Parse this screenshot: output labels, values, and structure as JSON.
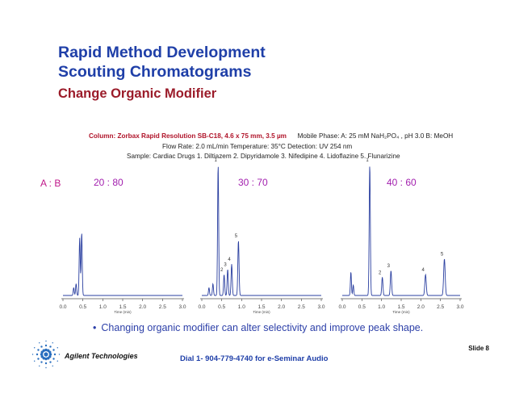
{
  "title_line1": "Rapid Method Development",
  "title_line2": "Scouting Chromatograms",
  "subtitle": "Change Organic Modifier",
  "conditions": {
    "column_label": "Column:  Zorbax Rapid Resolution SB-C18, 4.6 x 75 mm, 3.5 µm",
    "mobile_phase": "Mobile Phase: A: 25 mM NaH₂PO₄ , pH 3.0  B: MeOH",
    "flow_line": "Flow  Rate:  2.0 mL/min        Temperature: 35°C          Detection:  UV 254 nm",
    "sample_line": "Sample: Cardiac Drugs   1. Diltiazem   2. Dipyridamole   3. Nifedipine   4. Lidoflazine   5. Flunarizine"
  },
  "ab_label": "A : B",
  "x_ticks": [
    "0.0",
    "0.5",
    "1.0",
    "1.5",
    "2.0",
    "2.5",
    "3.0"
  ],
  "x_axis_label": "Time (min)",
  "panels": [
    {
      "ratio": "20 : 80",
      "peaks": [
        {
          "label": "",
          "t": 0.27,
          "h": 0.06
        },
        {
          "label": "",
          "t": 0.33,
          "h": 0.09
        },
        {
          "label": "",
          "t": 0.42,
          "h": 0.44
        },
        {
          "label": "",
          "t": 0.47,
          "h": 0.48
        }
      ]
    },
    {
      "ratio": "30 : 70",
      "peaks": [
        {
          "label": "",
          "t": 0.18,
          "h": 0.06
        },
        {
          "label": "",
          "t": 0.28,
          "h": 0.09
        },
        {
          "label": "1",
          "t": 0.41,
          "h": 1.0
        },
        {
          "label": "2",
          "t": 0.56,
          "h": 0.16
        },
        {
          "label": "3",
          "t": 0.65,
          "h": 0.2
        },
        {
          "label": "4",
          "t": 0.75,
          "h": 0.24
        },
        {
          "label": "5",
          "t": 0.92,
          "h": 0.42
        }
      ]
    },
    {
      "ratio": "40 : 60",
      "peaks": [
        {
          "label": "",
          "t": 0.22,
          "h": 0.18
        },
        {
          "label": "",
          "t": 0.28,
          "h": 0.08
        },
        {
          "label": "1",
          "t": 0.7,
          "h": 1.0
        },
        {
          "label": "2",
          "t": 1.02,
          "h": 0.14
        },
        {
          "label": "3",
          "t": 1.24,
          "h": 0.19
        },
        {
          "label": "4",
          "t": 2.12,
          "h": 0.16
        },
        {
          "label": "5",
          "t": 2.6,
          "h": 0.28
        }
      ]
    }
  ],
  "bullet": "Changing organic modifier can alter selectivity and improve peak shape.",
  "slide_label": "Slide 8",
  "dial": "Dial 1- 904-779-4740 for e-Seminar Audio",
  "company": "Agilent Technologies",
  "colors": {
    "title": "#1f3fa8",
    "subtitle": "#9b1c2a",
    "ratio": "#a21fae",
    "trace": "#2a3fa0"
  }
}
